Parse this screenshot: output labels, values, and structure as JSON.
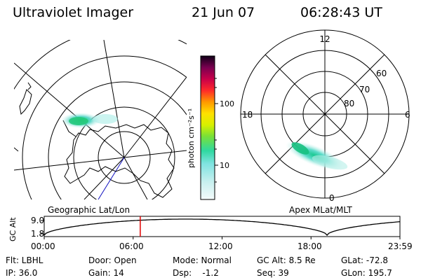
{
  "header": {
    "title": "Ultraviolet Imager",
    "date": "21 Jun 07",
    "time": "06:28:43 UT"
  },
  "colorbar": {
    "label": "photon cm⁻²s⁻¹",
    "tick_100": "100",
    "tick_10": "10"
  },
  "left_panel": {
    "label": "Geographic Lat/Lon"
  },
  "right_panel": {
    "label": "Apex MLat/MLT",
    "mlt_12": "12",
    "mlt_18": "18",
    "mlt_6": "6",
    "mlt_0": "0",
    "lat_60": "60",
    "lat_70": "70",
    "lat_80": "80"
  },
  "timeline": {
    "ylabel": "GC Alt",
    "y_top": "9.0",
    "y_bottom": "1.8",
    "ticks": [
      "00:00",
      "06:00",
      "12:00",
      "18:00",
      "23:59"
    ],
    "current_time_fraction": 0.27
  },
  "info": {
    "flt": "Flt: LBHL",
    "ip": "IP: 36.0",
    "door": "Door: Open",
    "gain": "Gain: 14",
    "mode": "Mode: Normal",
    "dsp": "Dsp:    -1.2",
    "gcalt": "GC Alt: 8.5 Re",
    "seq": "Seq: 39",
    "glat": "GLat: -72.8",
    "glon": "GLon: 195.7"
  },
  "colors": {
    "aurora_core": "#2ad88c",
    "aurora_edge": "#8fe8e0",
    "current_marker": "#e00000"
  }
}
